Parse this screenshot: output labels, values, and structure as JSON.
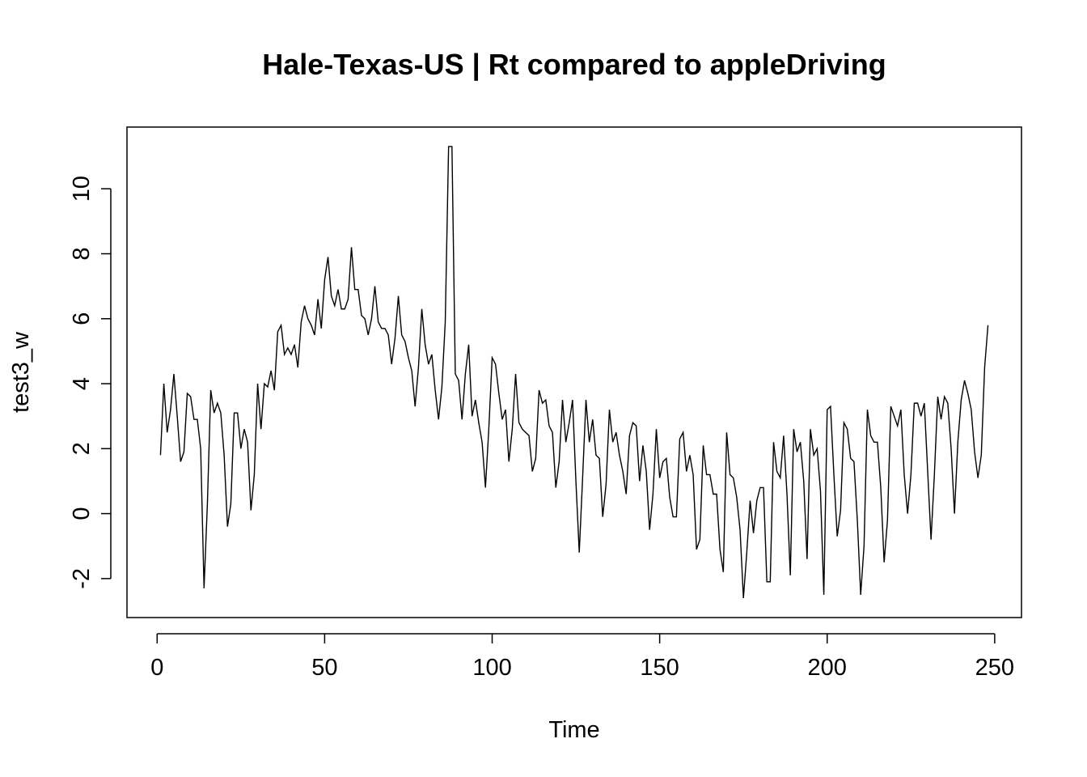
{
  "chart_data": {
    "type": "line",
    "title": "Hale-Texas-US | Rt compared to appleDriving",
    "xlabel": "Time",
    "ylabel": "test3_w",
    "xlim": [
      -9,
      258
    ],
    "ylim": [
      -3.2,
      11.9
    ],
    "x_ticks": [
      0,
      50,
      100,
      150,
      200,
      250
    ],
    "y_ticks": [
      -2,
      0,
      2,
      4,
      6,
      8,
      10
    ],
    "grid": false,
    "legend": "none",
    "colors": {
      "line": "#000000",
      "background": "#ffffff"
    },
    "x_start": 1,
    "series": [
      {
        "values": [
          1.8,
          4.0,
          2.5,
          3.2,
          4.3,
          3.0,
          1.6,
          1.9,
          3.7,
          3.6,
          2.9,
          2.9,
          2.0,
          -2.3,
          0.3,
          3.8,
          3.1,
          3.4,
          3.1,
          1.8,
          -0.4,
          0.3,
          3.1,
          3.1,
          2.0,
          2.6,
          2.2,
          0.1,
          1.2,
          4.0,
          2.6,
          4.0,
          3.9,
          4.4,
          3.8,
          5.6,
          5.8,
          4.9,
          5.1,
          4.9,
          5.2,
          4.5,
          5.9,
          6.4,
          6.0,
          5.8,
          5.5,
          6.6,
          5.7,
          7.2,
          7.9,
          6.7,
          6.4,
          6.9,
          6.3,
          6.3,
          6.6,
          8.2,
          6.9,
          6.9,
          6.1,
          6.0,
          5.5,
          6.0,
          7.0,
          5.9,
          5.7,
          5.7,
          5.5,
          4.6,
          5.4,
          6.7,
          5.5,
          5.3,
          4.8,
          4.4,
          3.3,
          4.5,
          6.3,
          5.2,
          4.6,
          4.9,
          3.8,
          2.9,
          3.9,
          5.9,
          11.3,
          11.3,
          4.3,
          4.1,
          2.9,
          4.3,
          5.2,
          3.0,
          3.5,
          2.8,
          2.2,
          0.8,
          2.6,
          4.8,
          4.6,
          3.7,
          2.9,
          3.2,
          1.6,
          2.6,
          4.3,
          2.8,
          2.6,
          2.5,
          2.4,
          1.3,
          1.7,
          3.8,
          3.4,
          3.5,
          2.7,
          2.5,
          0.8,
          1.6,
          3.5,
          2.2,
          2.8,
          3.5,
          1.0,
          -1.2,
          1.1,
          3.5,
          2.2,
          2.9,
          1.8,
          1.7,
          -0.1,
          0.9,
          3.2,
          2.2,
          2.5,
          1.8,
          1.3,
          0.6,
          2.4,
          2.8,
          2.7,
          1.0,
          2.1,
          1.3,
          -0.5,
          0.6,
          2.6,
          1.1,
          1.6,
          1.7,
          0.5,
          -0.1,
          -0.1,
          2.3,
          2.5,
          1.3,
          1.8,
          1.2,
          -1.1,
          -0.8,
          2.1,
          1.2,
          1.2,
          0.6,
          0.6,
          -1.1,
          -1.8,
          2.5,
          1.2,
          1.1,
          0.5,
          -0.5,
          -2.6,
          -1.2,
          0.4,
          -0.6,
          0.4,
          0.8,
          0.8,
          -2.1,
          -2.1,
          2.2,
          1.3,
          1.1,
          2.4,
          0.6,
          -1.9,
          2.6,
          1.9,
          2.2,
          1.0,
          -1.4,
          2.6,
          1.8,
          2.0,
          0.7,
          -2.5,
          3.2,
          3.3,
          1.2,
          -0.7,
          0.1,
          2.8,
          2.6,
          1.7,
          1.6,
          -0.2,
          -2.5,
          -1.0,
          3.2,
          2.4,
          2.2,
          2.2,
          0.8,
          -1.5,
          -0.2,
          3.3,
          3.0,
          2.7,
          3.2,
          1.2,
          0.0,
          1.2,
          3.4,
          3.4,
          3.0,
          3.4,
          1.3,
          -0.8,
          1.2,
          3.6,
          2.9,
          3.6,
          3.4,
          2.0,
          0.0,
          2.2,
          3.5,
          4.1,
          3.7,
          3.2,
          1.9,
          1.1,
          1.8,
          4.5,
          5.8
        ]
      }
    ]
  }
}
